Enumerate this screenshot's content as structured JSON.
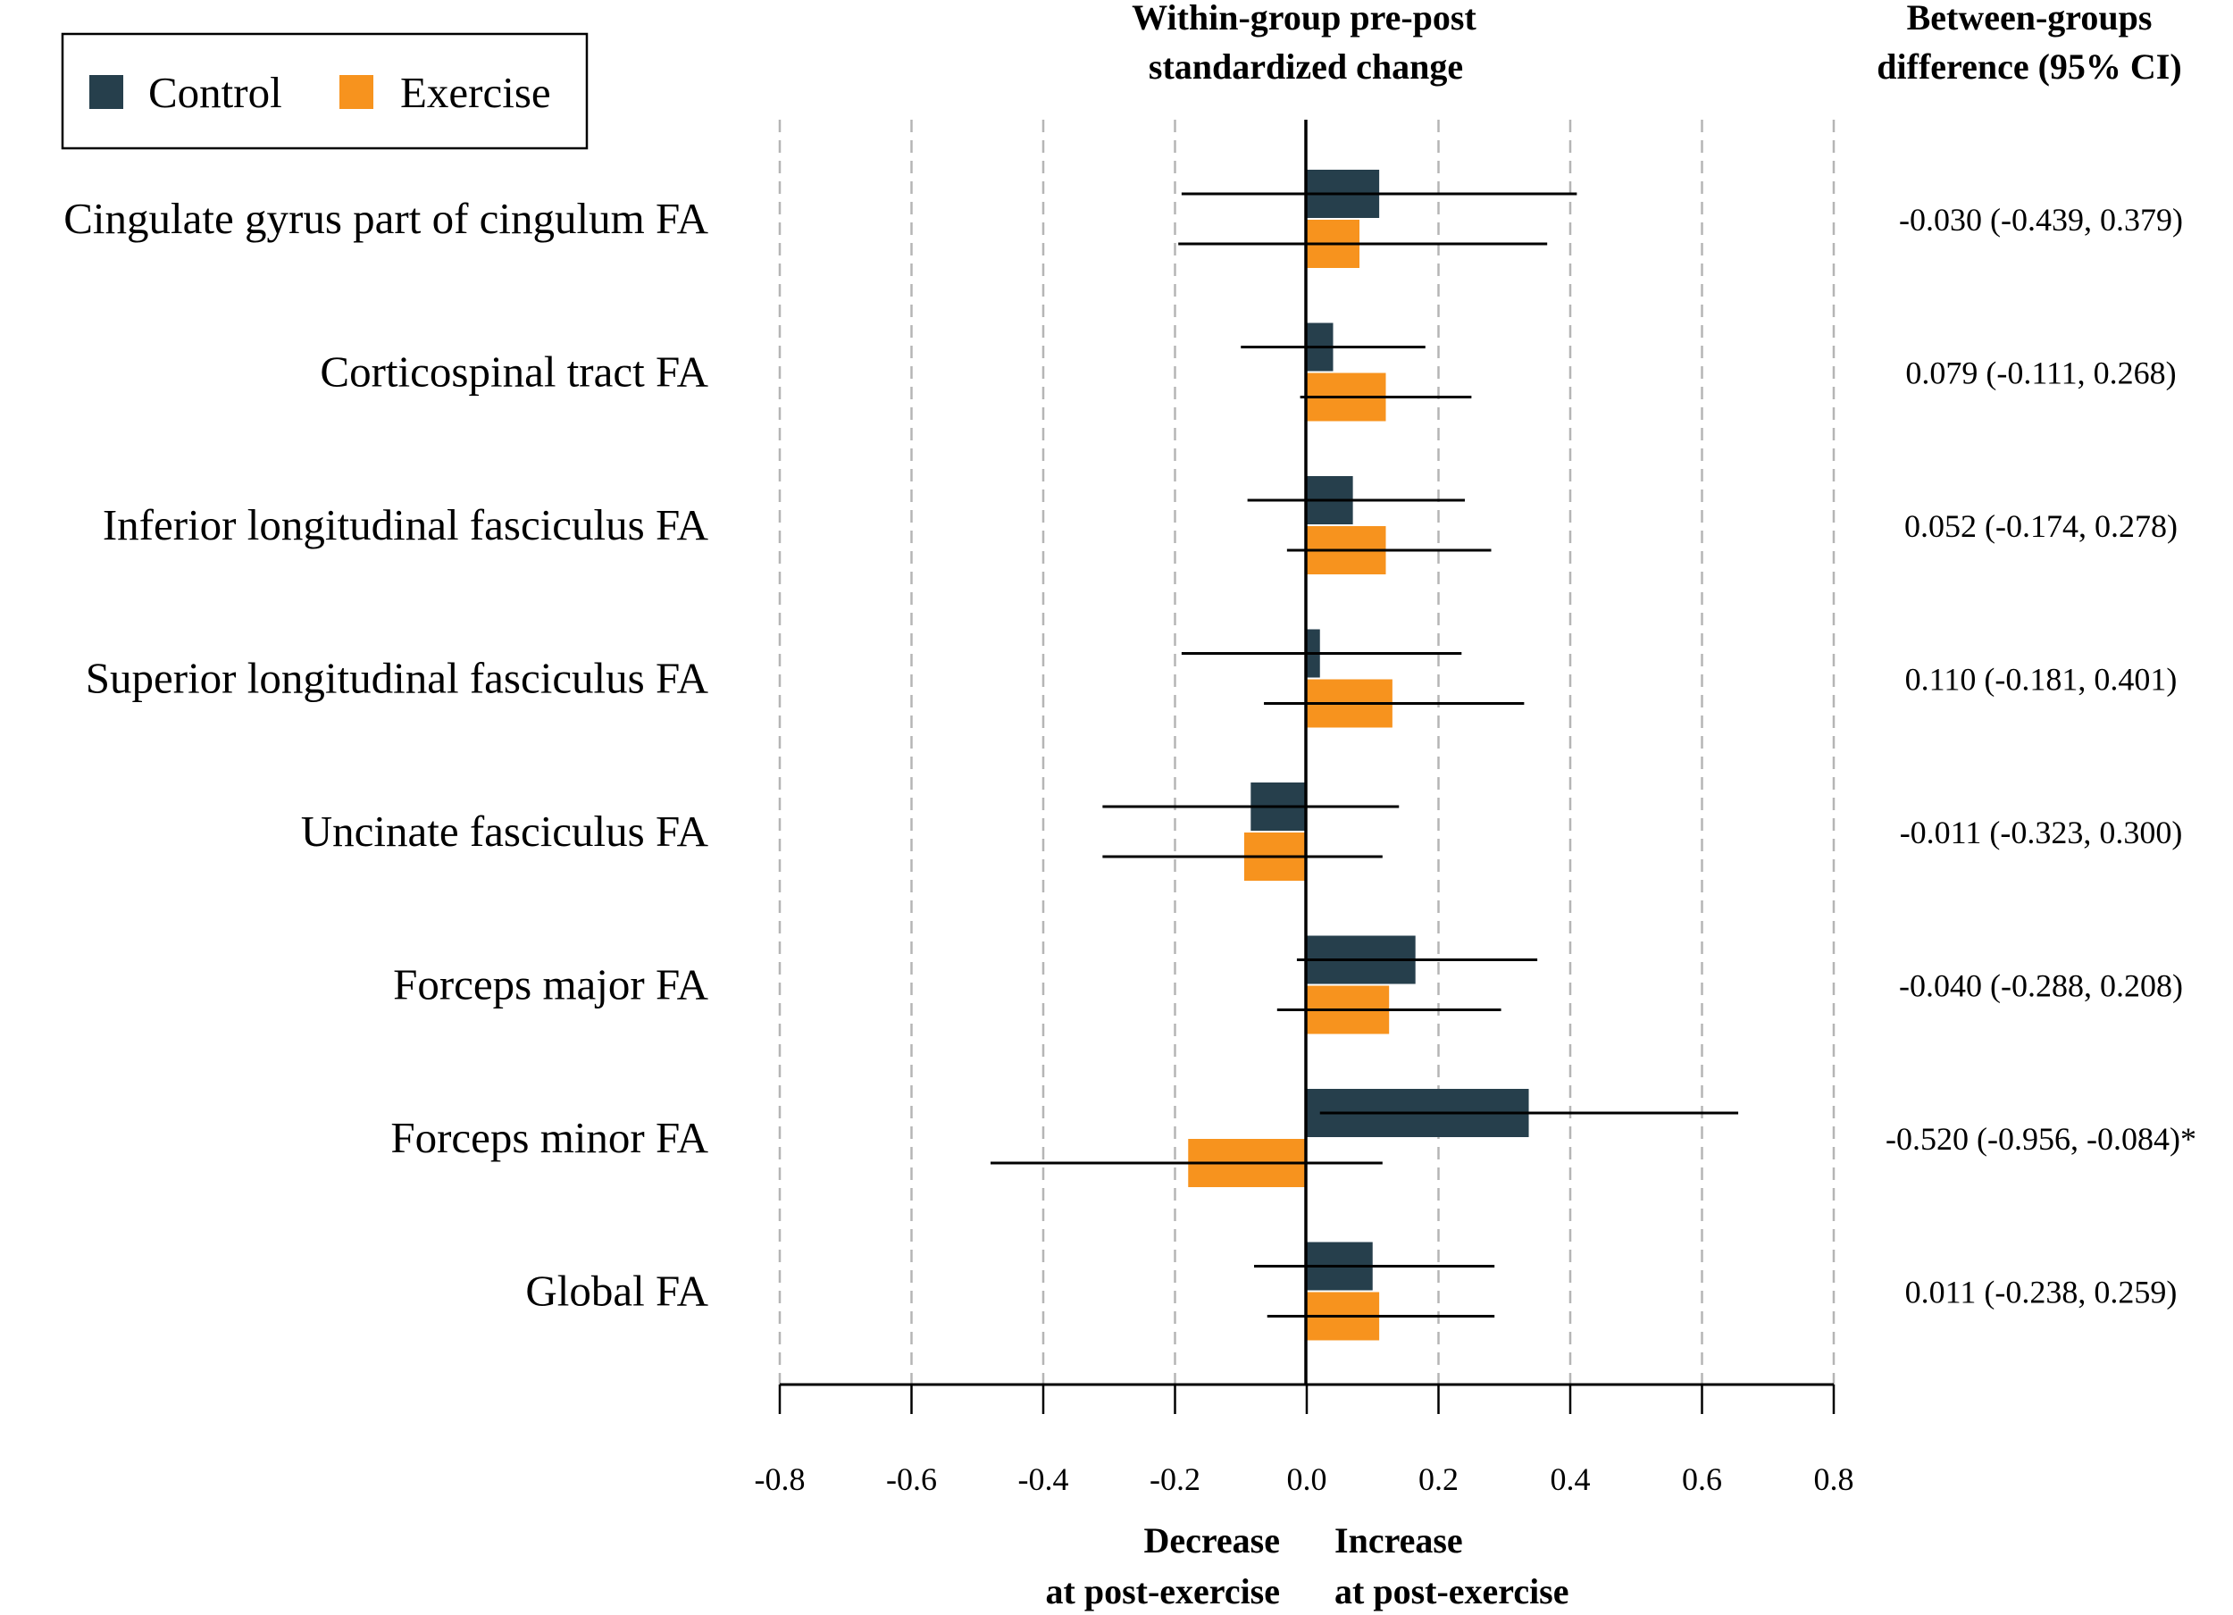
{
  "chart_data": {
    "type": "bar",
    "orientation": "horizontal",
    "title": "Within-group pre-post standardized change",
    "title_lines": [
      "Within-group pre-post",
      "standardized change"
    ],
    "right_header_lines": [
      "Between-groups",
      "difference (95% CI)"
    ],
    "xlim": [
      -0.8,
      0.8
    ],
    "xticks": [
      -0.8,
      -0.6,
      -0.4,
      -0.2,
      0.0,
      0.2,
      0.4,
      0.6,
      0.8
    ],
    "xtick_labels": [
      "-0.8",
      "-0.6",
      "-0.4",
      "-0.2",
      "0.0",
      "0.2",
      "0.4",
      "0.6",
      "0.8"
    ],
    "grid": "vertical dashed",
    "legend_position": "top-left",
    "axis_annotations": {
      "decrease": [
        "Decrease",
        "at post-exercise"
      ],
      "increase": [
        "Increase",
        "at post-exercise"
      ]
    },
    "categories": [
      "Cingulate gyrus part of cingulum FA",
      "Corticospinal tract FA",
      "Inferior longitudinal fasciculus FA",
      "Superior longitudinal fasciculus FA",
      "Uncinate fasciculus FA",
      "Forceps major FA",
      "Forceps minor FA",
      "Global FA"
    ],
    "series": [
      {
        "name": "Control",
        "color": "#263f4c",
        "values": [
          0.11,
          0.04,
          0.07,
          0.02,
          -0.085,
          0.165,
          0.337,
          0.1
        ],
        "ci_low": [
          -0.19,
          -0.1,
          -0.09,
          -0.19,
          -0.31,
          -0.015,
          0.02,
          -0.08
        ],
        "ci_high": [
          0.41,
          0.18,
          0.24,
          0.235,
          0.14,
          0.35,
          0.655,
          0.285
        ]
      },
      {
        "name": "Exercise",
        "color": "#f7931e",
        "values": [
          0.08,
          0.12,
          0.12,
          0.13,
          -0.095,
          0.125,
          -0.18,
          0.11
        ],
        "ci_low": [
          -0.195,
          -0.01,
          -0.03,
          -0.065,
          -0.31,
          -0.045,
          -0.48,
          -0.06
        ],
        "ci_high": [
          0.365,
          0.25,
          0.28,
          0.33,
          0.115,
          0.295,
          0.115,
          0.285
        ]
      }
    ],
    "between_groups": [
      "-0.030 (-0.439,  0.379)",
      "0.079 (-0.111,  0.268)",
      "0.052 (-0.174,  0.278)",
      "0.110 (-0.181,  0.401)",
      "-0.011 (-0.323,  0.300)",
      "-0.040 (-0.288,  0.208)",
      "-0.520 (-0.956, -0.084)*",
      "0.011 (-0.238,  0.259)"
    ]
  }
}
